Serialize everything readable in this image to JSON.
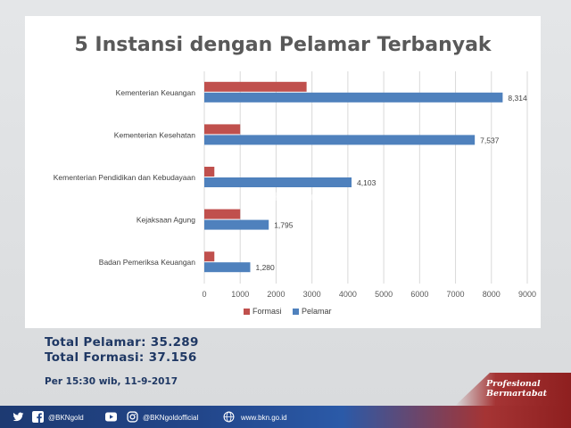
{
  "chart_data": {
    "type": "bar",
    "orientation": "horizontal",
    "title": "5 Instansi dengan Pelamar Terbanyak",
    "categories": [
      "Kementerian Keuangan",
      "Kementerian Kesehatan",
      "Kementerian Pendidikan dan Kebudayaan",
      "Kejaksaan Agung",
      "Badan Pemeriksa Keuangan"
    ],
    "series": [
      {
        "name": "Formasi",
        "color": "#c0504d",
        "values": [
          2850,
          1000,
          280,
          1000,
          280
        ]
      },
      {
        "name": "Pelamar",
        "color": "#4f81bd",
        "values": [
          8314,
          7537,
          4103,
          1795,
          1280
        ],
        "labels": [
          "8,314",
          "7,537",
          "4,103",
          "1,795",
          "1,280"
        ]
      }
    ],
    "xlim": [
      0,
      9000
    ],
    "xticks": [
      "0",
      "1000",
      "2000",
      "3000",
      "4000",
      "5000",
      "6000",
      "7000",
      "8000",
      "9000"
    ],
    "grid": true,
    "legend_position": "bottom"
  },
  "watermark": "@BKNgold",
  "summary": {
    "total_pelamar": "Total Pelamar: 35.289",
    "total_formasi": "Total Formasi: 37.156",
    "timestamp": "Per 15:30 wib, 11-9-2017"
  },
  "footer": {
    "facebook": "@BKNgold",
    "instagram": "@BKNgoldofficial",
    "website": "www.bkn.go.id",
    "tagline_1": "Profesional",
    "tagline_2": "Bermartabat"
  },
  "colors": {
    "navy": "#1f3864",
    "red": "#a53434"
  }
}
